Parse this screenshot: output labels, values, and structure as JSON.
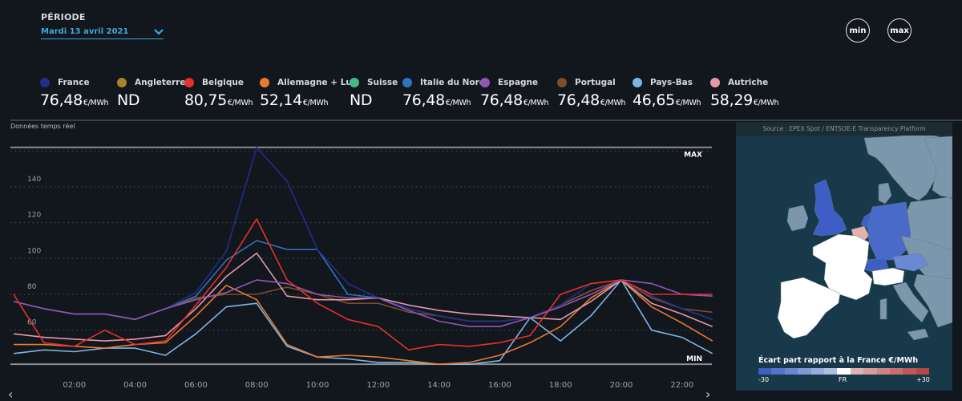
{
  "periode": {
    "label": "PÉRIODE",
    "selected": "Mardi 13 avril 2021"
  },
  "buttons": {
    "min_label": "min",
    "max_label": "max"
  },
  "unit": "€/MWh",
  "countries": [
    {
      "name": "France",
      "value": "76,48",
      "color": "#1f2f8a",
      "has_unit": true
    },
    {
      "name": "Angleterre",
      "value": "ND",
      "color": "#a9832b",
      "has_unit": false
    },
    {
      "name": "Belgique",
      "value": "80,75",
      "color": "#e5312a",
      "has_unit": true
    },
    {
      "name": "Allemagne + Lux",
      "value": "52,14",
      "color": "#ea7a2f",
      "has_unit": true
    },
    {
      "name": "Suisse",
      "value": "ND",
      "color": "#44b98c",
      "has_unit": false
    },
    {
      "name": "Italie du Nord",
      "value": "76,48",
      "color": "#2f72bd",
      "has_unit": true
    },
    {
      "name": "Espagne",
      "value": "76,48",
      "color": "#9057b3",
      "has_unit": true
    },
    {
      "name": "Portugal",
      "value": "76,48",
      "color": "#7e4d2b",
      "has_unit": true
    },
    {
      "name": "Pays-Bas",
      "value": "46,65",
      "color": "#7fb5e3",
      "has_unit": true
    },
    {
      "name": "Autriche",
      "value": "58,29",
      "color": "#e39aa5",
      "has_unit": true
    }
  ],
  "realtime_label": "Données temps réel",
  "chart_data": {
    "type": "line",
    "x": [
      "00:00",
      "01:00",
      "02:00",
      "03:00",
      "04:00",
      "05:00",
      "06:00",
      "07:00",
      "08:00",
      "09:00",
      "10:00",
      "11:00",
      "12:00",
      "13:00",
      "14:00",
      "15:00",
      "16:00",
      "17:00",
      "18:00",
      "19:00",
      "20:00",
      "21:00",
      "22:00",
      "23:00"
    ],
    "xticks": [
      "02:00",
      "04:00",
      "06:00",
      "08:00",
      "10:00",
      "12:00",
      "14:00",
      "16:00",
      "18:00",
      "20:00",
      "22:00"
    ],
    "yticks": [
      60,
      80,
      100,
      120,
      140
    ],
    "ylim": [
      38,
      162
    ],
    "max_line": {
      "label": "MAX",
      "value": 162
    },
    "min_line": {
      "label": "MIN",
      "value": 41
    },
    "grid": true,
    "series": [
      {
        "name": "Italie du Nord",
        "color": "#2f72bd",
        "values": [
          76,
          72,
          69,
          69,
          66,
          72,
          79,
          99,
          110,
          105,
          105,
          80,
          78,
          72,
          68,
          65,
          65,
          67,
          74,
          82,
          88,
          79,
          72,
          66
        ]
      },
      {
        "name": "Portugal",
        "color": "#7e4d2b",
        "values": [
          76,
          72,
          69,
          69,
          66,
          72,
          78,
          80,
          80,
          84,
          80,
          75,
          75,
          70,
          68,
          65,
          65,
          67,
          74,
          82,
          88,
          78,
          72,
          70
        ]
      },
      {
        "name": "France",
        "color": "#1f2f8a",
        "values": [
          76,
          72,
          69,
          69,
          66,
          72,
          81,
          104,
          162,
          143,
          105,
          86,
          78,
          72,
          68,
          65,
          65,
          67,
          74,
          86,
          88,
          79,
          72,
          66
        ]
      },
      {
        "name": "Pays-Bas",
        "color": "#7fb5e3",
        "values": [
          47,
          49,
          48,
          50,
          50,
          46,
          58,
          73,
          75,
          51,
          45,
          44,
          42,
          42,
          41,
          41,
          43,
          67,
          54,
          68,
          88,
          60,
          56,
          47
        ]
      },
      {
        "name": "Allemagne + Lux",
        "color": "#ea7a2f",
        "values": [
          52,
          52,
          51,
          50,
          52,
          53,
          68,
          85,
          77,
          52,
          45,
          46,
          45,
          43,
          41,
          42,
          46,
          53,
          62,
          78,
          88,
          73,
          64,
          54
        ]
      },
      {
        "name": "Autriche",
        "color": "#e39aa5",
        "values": [
          58,
          56,
          55,
          54,
          55,
          57,
          72,
          90,
          103,
          79,
          77,
          77,
          78,
          74,
          71,
          69,
          68,
          67,
          66,
          76,
          88,
          75,
          69,
          62
        ]
      },
      {
        "name": "Espagne",
        "color": "#9057b3",
        "values": [
          76,
          72,
          69,
          69,
          66,
          72,
          77,
          81,
          88,
          86,
          80,
          78,
          78,
          71,
          65,
          62,
          62,
          67,
          73,
          80,
          88,
          86,
          80,
          79
        ]
      },
      {
        "name": "Belgique",
        "color": "#e5312a",
        "values": [
          80,
          53,
          51,
          60,
          52,
          54,
          74,
          95,
          122,
          88,
          75,
          66,
          62,
          49,
          52,
          51,
          53,
          57,
          80,
          86,
          88,
          80,
          80,
          80
        ]
      }
    ]
  },
  "map": {
    "source": "Source : EPEX Spot / ENTSOE-E Transparency Platform",
    "scale_title": "Écart part rapport à la France €/MWh",
    "scale_min": "-30",
    "scale_mid": "FR",
    "scale_max": "+30",
    "scale_colors": [
      "#3f5fc2",
      "#5572c9",
      "#6b86d0",
      "#8199d6",
      "#97acdc",
      "#aebfe3",
      "#ffffff",
      "#e0b3b3",
      "#d99a9a",
      "#d28383",
      "#c96d6d",
      "#c05757",
      "#b84545"
    ],
    "region_colors": {
      "sea": "#17394a",
      "france": "#ffffff",
      "uk": "#3e5ec6",
      "germany": "#4a6ac8",
      "belgium": "#e4b2ad",
      "netherlands": "#3e5ec6",
      "switzerland": "#3e5ec6",
      "austria": "#6a88d4",
      "nodata": "#7c96ab"
    }
  }
}
